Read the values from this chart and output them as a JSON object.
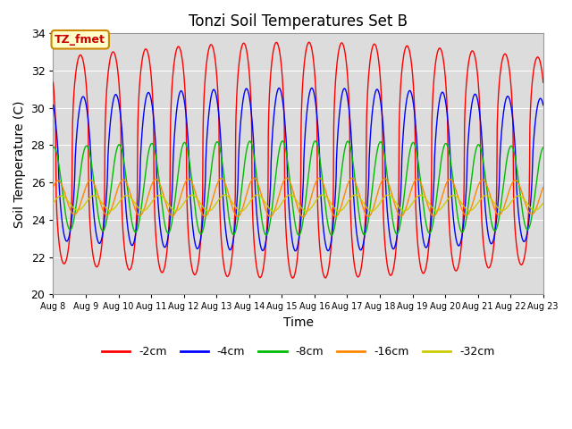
{
  "title": "Tonzi Soil Temperatures Set B",
  "xlabel": "Time",
  "ylabel": "Soil Temperature (C)",
  "ylim": [
    20,
    34
  ],
  "n_days": 15,
  "series_order": [
    "-2cm",
    "-4cm",
    "-8cm",
    "-16cm",
    "-32cm"
  ],
  "series": {
    "-2cm": {
      "color": "#ff0000",
      "amplitude": 5.5,
      "mean": 27.2,
      "phase_hr": 0.0,
      "sharpness": 2.5
    },
    "-4cm": {
      "color": "#0000ff",
      "amplitude": 3.8,
      "mean": 26.7,
      "phase_hr": 2.0,
      "sharpness": 1.5
    },
    "-8cm": {
      "color": "#00bb00",
      "amplitude": 2.2,
      "mean": 25.7,
      "phase_hr": 4.5,
      "sharpness": 1.0
    },
    "-16cm": {
      "color": "#ff8800",
      "amplitude": 0.9,
      "mean": 25.2,
      "phase_hr": 7.5,
      "sharpness": 1.0
    },
    "-32cm": {
      "color": "#cccc00",
      "amplitude": 0.38,
      "mean": 24.9,
      "phase_hr": 10.0,
      "sharpness": 1.0
    }
  },
  "xtick_labels": [
    "Aug 8",
    "Aug 9",
    "Aug 10",
    "Aug 11",
    "Aug 12",
    "Aug 13",
    "Aug 14",
    "Aug 15",
    "Aug 16",
    "Aug 17",
    "Aug 18",
    "Aug 19",
    "Aug 20",
    "Aug 21",
    "Aug 22",
    "Aug 23"
  ],
  "annotation_text": "TZ_fmet",
  "bg_color": "#dcdcdc",
  "legend_entries": [
    "-2cm",
    "-4cm",
    "-8cm",
    "-16cm",
    "-32cm"
  ],
  "legend_colors": [
    "#ff0000",
    "#0000ff",
    "#00bb00",
    "#ff8800",
    "#cccc00"
  ]
}
